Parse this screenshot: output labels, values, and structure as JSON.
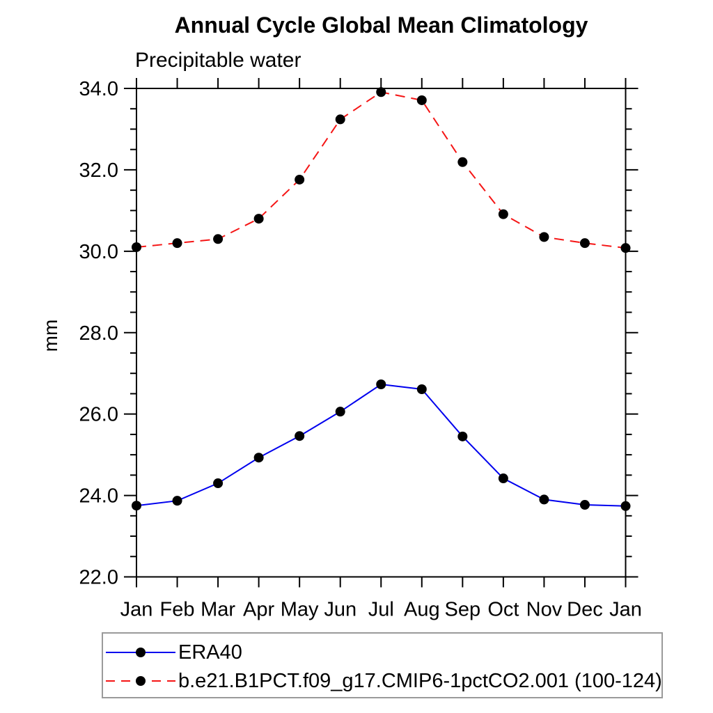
{
  "header": {
    "title": "Annual Cycle Global Mean Climatology",
    "subtitle": "Precipitable water"
  },
  "chart_data": {
    "type": "line",
    "title": "Annual Cycle Global Mean Climatology",
    "subtitle": "Precipitable water",
    "xlabel": "",
    "ylabel": "mm",
    "categories": [
      "Jan",
      "Feb",
      "Mar",
      "Apr",
      "May",
      "Jun",
      "Jul",
      "Aug",
      "Sep",
      "Oct",
      "Nov",
      "Dec",
      "Jan"
    ],
    "series": [
      {
        "name": "ERA40",
        "color": "#0000ee",
        "dash": false,
        "marker": "circle",
        "marker_color": "#000000",
        "values": [
          23.75,
          23.87,
          24.3,
          24.93,
          25.46,
          26.06,
          26.73,
          26.61,
          25.45,
          24.42,
          23.9,
          23.77,
          23.74
        ]
      },
      {
        "name": "b.e21.B1PCT.f09_g17.CMIP6-1pctCO2.001 (100-124)",
        "color": "#f51515",
        "dash": true,
        "marker": "circle",
        "marker_color": "#000000",
        "values": [
          30.1,
          30.2,
          30.3,
          30.8,
          31.76,
          33.24,
          33.91,
          33.71,
          32.19,
          30.91,
          30.35,
          30.2,
          30.08
        ]
      }
    ],
    "ylim": [
      22.0,
      34.0
    ],
    "ytick_major_step": 2.0,
    "ytick_minor_step": 0.5,
    "ytick_labels": [
      "22.0",
      "24.0",
      "26.0",
      "28.0",
      "30.0",
      "32.0",
      "34.0"
    ],
    "grid": false,
    "legend_position": "bottom-left",
    "axis_color": "#000000"
  }
}
